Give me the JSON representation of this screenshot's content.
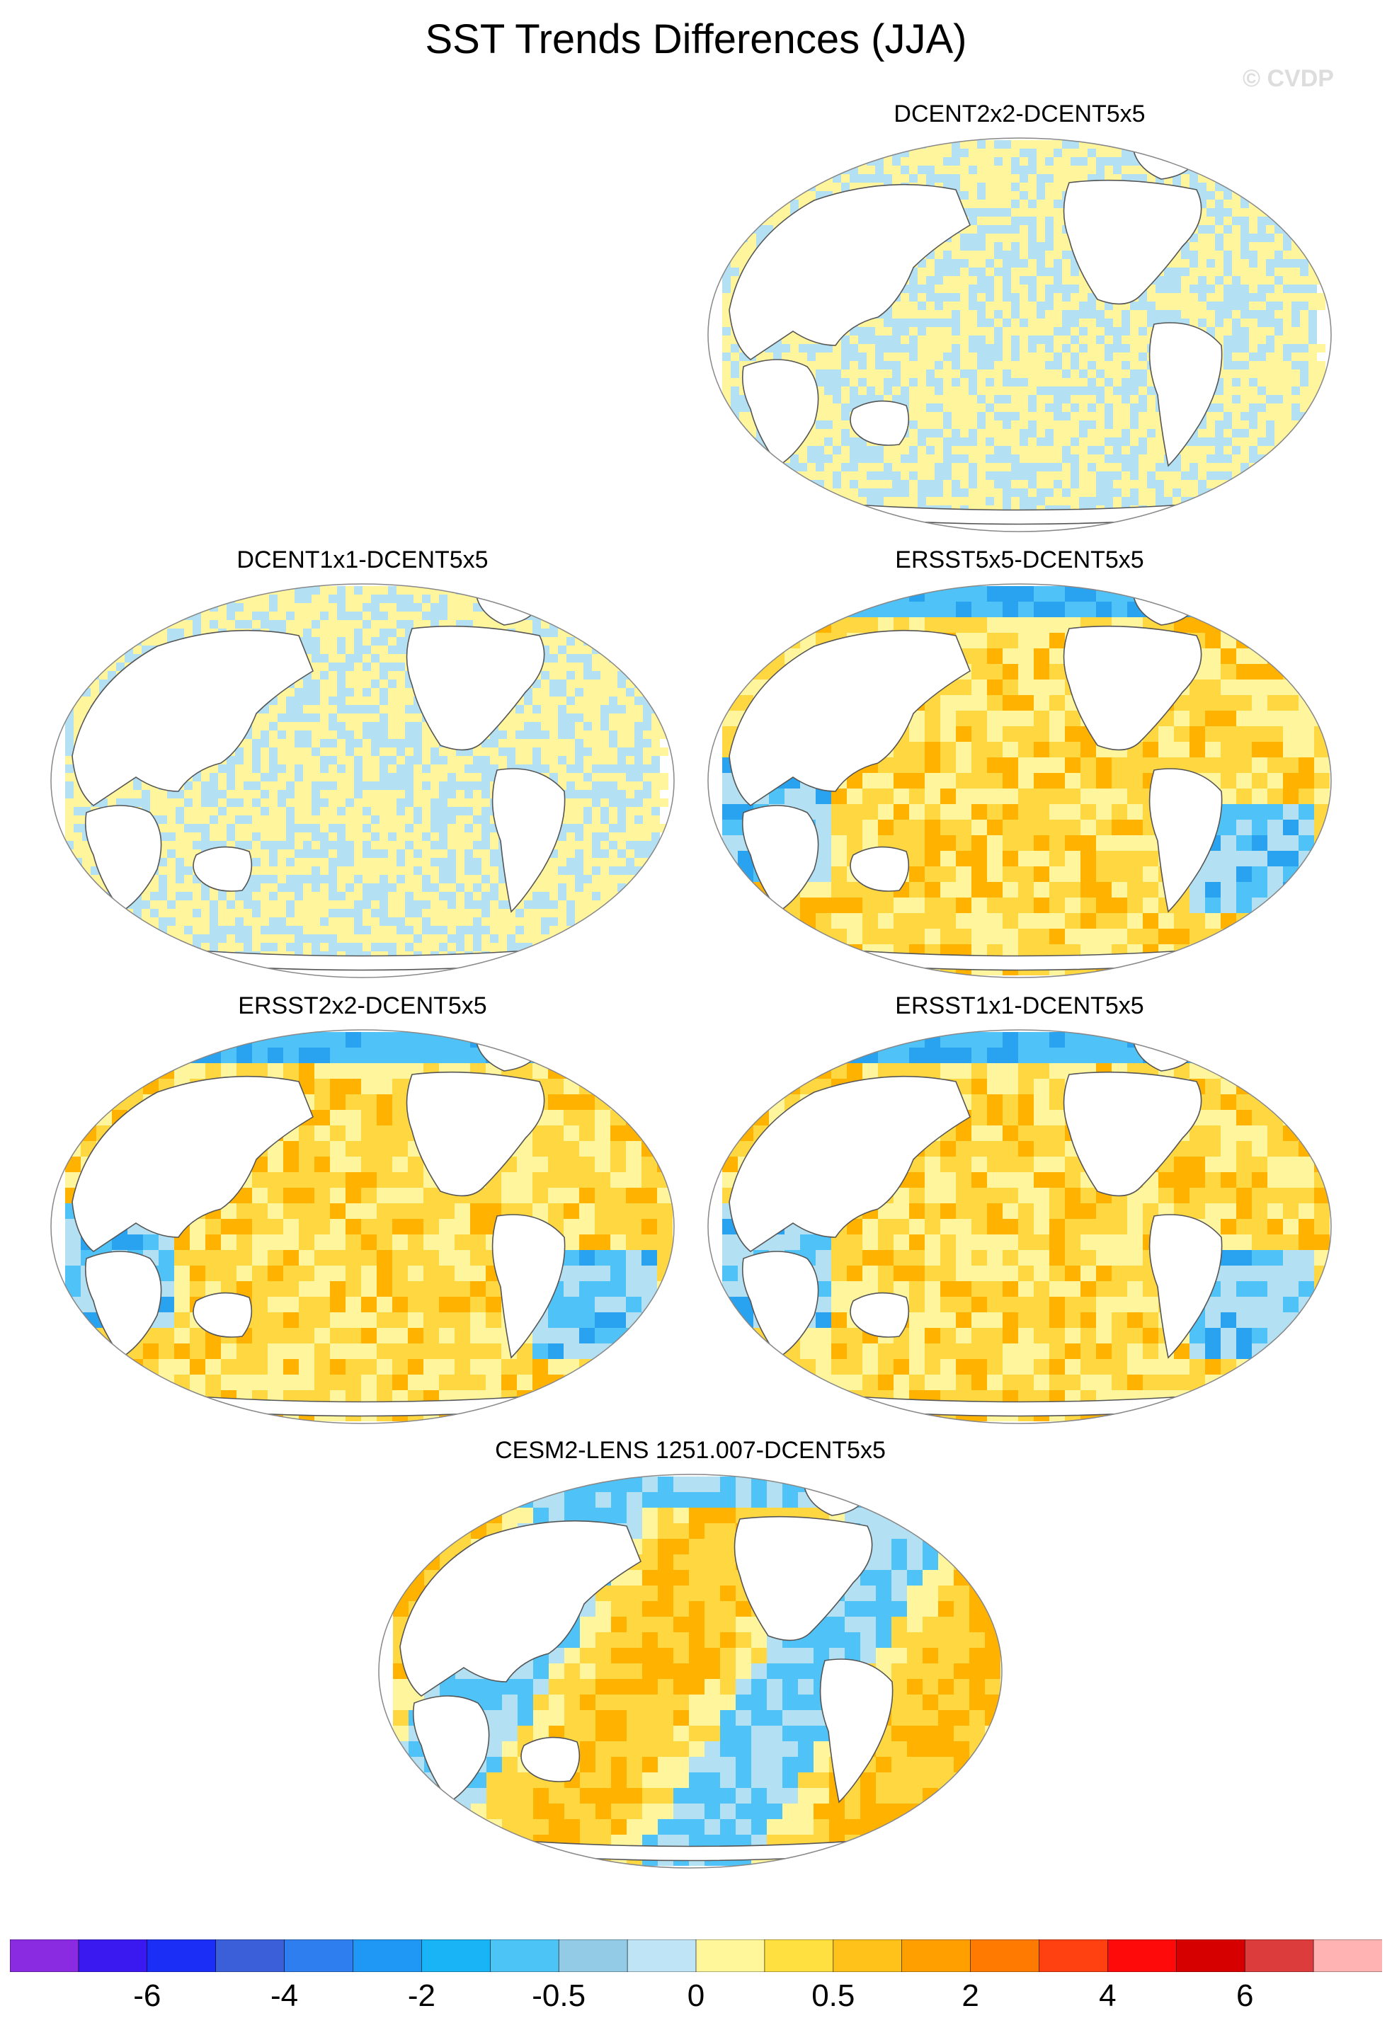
{
  "title": "SST Trends Differences (JJA)",
  "watermark": "© CVDP",
  "palette": {
    "ocean_warm": "#ffd740",
    "ocean_hot": "#ffb300",
    "ocean_light": "#fff59d",
    "ocean_cool": "#b3e0f2",
    "ocean_cold": "#4fc3f7",
    "ocean_colder": "#29a3f0",
    "land_outline": "#555555"
  },
  "panels": [
    {
      "id": "dcent2x2",
      "label": "DCENT2x2-DCENT5x5",
      "style": "checker"
    },
    {
      "id": "dcent1x1",
      "label": "DCENT1x1-DCENT5x5",
      "style": "checker"
    },
    {
      "id": "ersst5x5",
      "label": "ERSST5x5-DCENT5x5",
      "style": "warm"
    },
    {
      "id": "ersst2x2",
      "label": "ERSST2x2-DCENT5x5",
      "style": "warm"
    },
    {
      "id": "ersst1x1",
      "label": "ERSST1x1-DCENT5x5",
      "style": "warm"
    },
    {
      "id": "cesm2",
      "label": "CESM2-LENS 1251.007-DCENT5x5",
      "style": "mixed"
    }
  ],
  "colorbar": {
    "colors": [
      "#8a2be2",
      "#3a18f0",
      "#1a2ef5",
      "#3a5fd8",
      "#2f7ef0",
      "#1f97f5",
      "#19b4f5",
      "#4cc4f5",
      "#93cbe6",
      "#bfe4f5",
      "#fff79a",
      "#ffe040",
      "#ffc21a",
      "#ffa000",
      "#ff7a00",
      "#ff4010",
      "#ff0a0a",
      "#d60000",
      "#dc3c3c",
      "#ffb3b3"
    ],
    "labels": [
      "-6",
      "-4",
      "-2",
      "-0.5",
      "0",
      "0.5",
      "2",
      "4",
      "6"
    ]
  }
}
